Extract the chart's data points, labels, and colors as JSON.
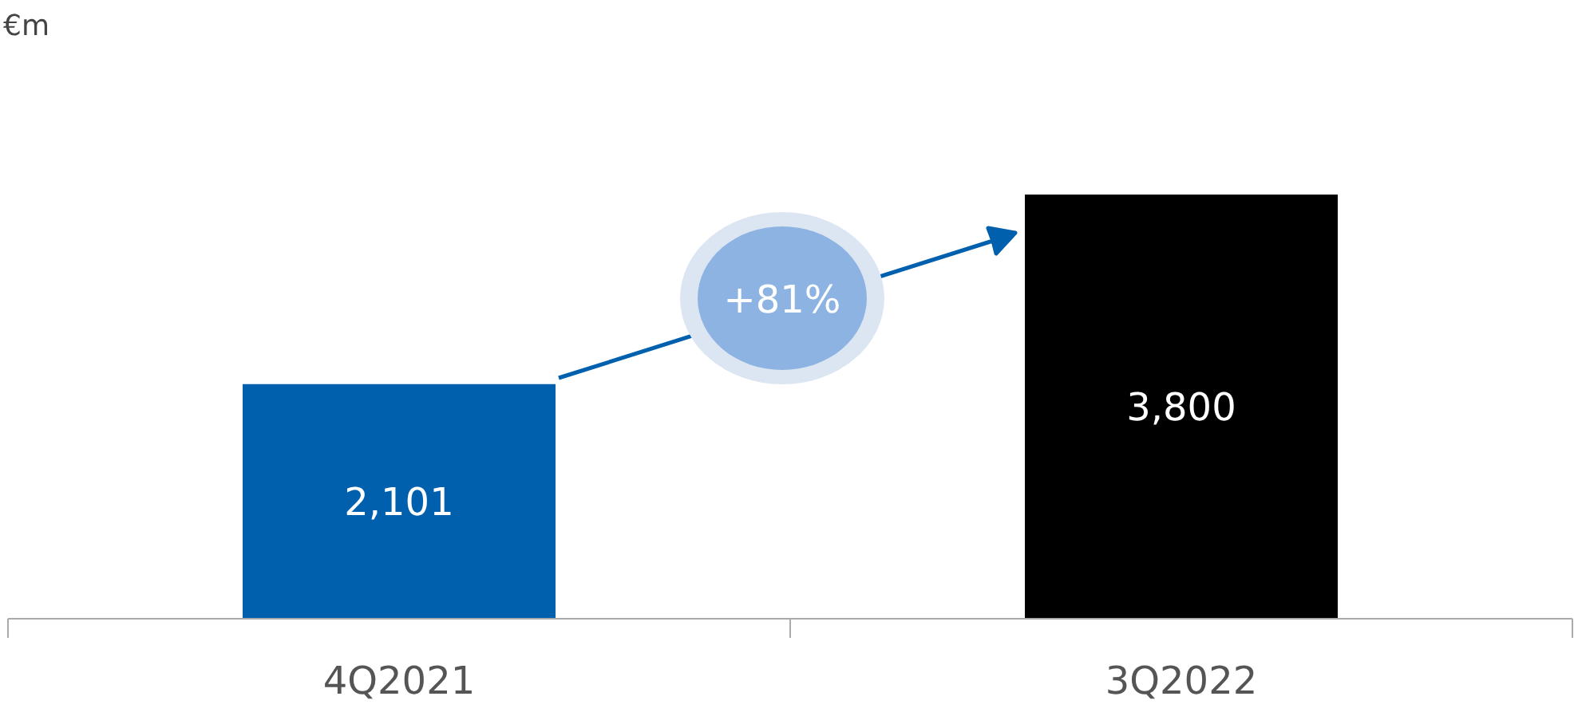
{
  "chart_data": {
    "type": "bar",
    "categories": [
      "4Q2021",
      "3Q2022"
    ],
    "values": [
      2101,
      3800
    ],
    "value_labels": [
      "2,101",
      "3,800"
    ],
    "colors": [
      "#0060ae",
      "#000000"
    ],
    "annotations": [
      "€m",
      "+81%"
    ]
  }
}
